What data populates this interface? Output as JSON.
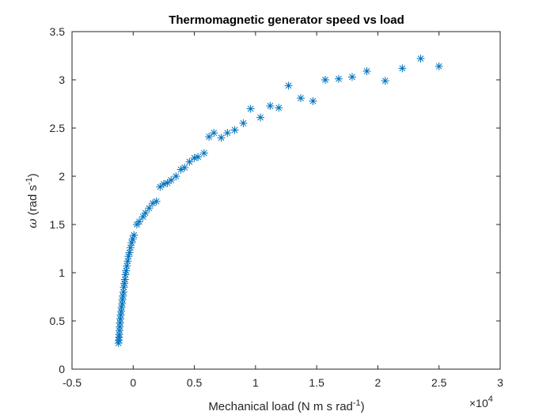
{
  "chart_data": {
    "type": "scatter",
    "title": "Thermomagnetic generator speed vs load",
    "xlabel": {
      "main": "Mechanical load (N m s rad",
      "sup": "-1",
      "tail": ")"
    },
    "ylabel": {
      "symbol": "ω",
      "main": " (rad s",
      "sup": "-1",
      "tail": ")"
    },
    "x_exponent": {
      "base": "×10",
      "power": "4"
    },
    "xlim": [
      -5000,
      30000
    ],
    "ylim": [
      0,
      3.5
    ],
    "x_ticks": [
      -5000,
      0,
      5000,
      10000,
      15000,
      20000,
      25000,
      30000
    ],
    "x_tick_labels": [
      "-0.5",
      "0",
      "0.5",
      "1",
      "1.5",
      "2",
      "2.5",
      "3"
    ],
    "y_ticks": [
      0,
      0.5,
      1,
      1.5,
      2,
      2.5,
      3,
      3.5
    ],
    "y_tick_labels": [
      "0",
      "0.5",
      "1",
      "1.5",
      "2",
      "2.5",
      "3",
      "3.5"
    ],
    "grid": false,
    "marker": "asterisk",
    "color": "#0072bd",
    "series": [
      {
        "points": [
          [
            -1200,
            0.27
          ],
          [
            -1180,
            0.3
          ],
          [
            -1160,
            0.33
          ],
          [
            -1140,
            0.36
          ],
          [
            -1120,
            0.4
          ],
          [
            -1100,
            0.44
          ],
          [
            -1080,
            0.48
          ],
          [
            -1050,
            0.52
          ],
          [
            -1020,
            0.56
          ],
          [
            -980,
            0.6
          ],
          [
            -950,
            0.64
          ],
          [
            -900,
            0.68
          ],
          [
            -880,
            0.72
          ],
          [
            -840,
            0.76
          ],
          [
            -800,
            0.8
          ],
          [
            -760,
            0.85
          ],
          [
            -720,
            0.89
          ],
          [
            -680,
            0.93
          ],
          [
            -630,
            0.98
          ],
          [
            -580,
            1.02
          ],
          [
            -520,
            1.07
          ],
          [
            -450,
            1.12
          ],
          [
            -380,
            1.17
          ],
          [
            -300,
            1.21
          ],
          [
            -220,
            1.26
          ],
          [
            -130,
            1.31
          ],
          [
            -40,
            1.35
          ],
          [
            60,
            1.39
          ],
          [
            300,
            1.5
          ],
          [
            500,
            1.53
          ],
          [
            800,
            1.58
          ],
          [
            1000,
            1.62
          ],
          [
            1300,
            1.67
          ],
          [
            1600,
            1.72
          ],
          [
            1900,
            1.74
          ],
          [
            2200,
            1.89
          ],
          [
            2500,
            1.92
          ],
          [
            2800,
            1.93
          ],
          [
            3100,
            1.96
          ],
          [
            3500,
            2.0
          ],
          [
            3900,
            2.07
          ],
          [
            4200,
            2.09
          ],
          [
            4600,
            2.15
          ],
          [
            5000,
            2.19
          ],
          [
            5300,
            2.2
          ],
          [
            5800,
            2.24
          ],
          [
            6200,
            2.41
          ],
          [
            6600,
            2.45
          ],
          [
            7200,
            2.4
          ],
          [
            7700,
            2.45
          ],
          [
            8300,
            2.48
          ],
          [
            9000,
            2.55
          ],
          [
            9600,
            2.7
          ],
          [
            10400,
            2.61
          ],
          [
            11200,
            2.73
          ],
          [
            11900,
            2.71
          ],
          [
            12700,
            2.94
          ],
          [
            13700,
            2.81
          ],
          [
            14700,
            2.78
          ],
          [
            15700,
            3.0
          ],
          [
            16800,
            3.01
          ],
          [
            17900,
            3.03
          ],
          [
            19100,
            3.09
          ],
          [
            20600,
            2.99
          ],
          [
            22000,
            3.12
          ],
          [
            23500,
            3.22
          ],
          [
            25000,
            3.14
          ]
        ]
      }
    ]
  }
}
